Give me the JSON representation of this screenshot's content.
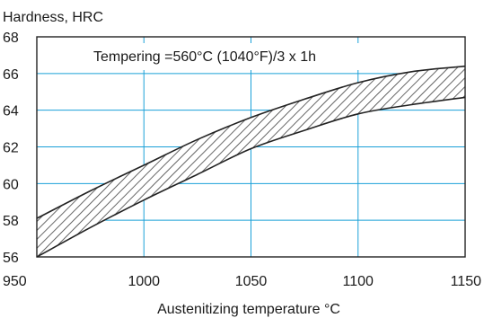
{
  "chart_data": {
    "type": "area",
    "ylabel": "Hardness, HRC",
    "xlabel": "Austenitizing temperature °C",
    "annotation": "Tempering =560°C (1040°F)/3 x 1h",
    "xlim": [
      950,
      1150
    ],
    "ylim": [
      56,
      68
    ],
    "x_ticks": [
      950,
      1000,
      1050,
      1100,
      1150
    ],
    "y_ticks": [
      56,
      58,
      60,
      62,
      64,
      66,
      68
    ],
    "grid": true,
    "grid_color": "#1aa0d8",
    "band_fill": "hatched",
    "band_color": "#222222",
    "series": [
      {
        "x": [
          950,
          975,
          1000,
          1025,
          1050,
          1075,
          1100,
          1125,
          1150
        ],
        "values": [
          58.1,
          59.6,
          61.0,
          62.4,
          63.6,
          64.6,
          65.5,
          66.1,
          66.4
        ]
      },
      {
        "x": [
          950,
          975,
          1000,
          1025,
          1050,
          1075,
          1100,
          1125,
          1150
        ],
        "values": [
          56.0,
          57.6,
          59.1,
          60.5,
          61.9,
          62.9,
          63.8,
          64.3,
          64.7
        ]
      }
    ]
  }
}
